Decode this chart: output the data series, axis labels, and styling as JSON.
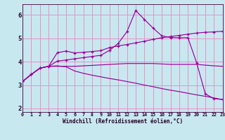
{
  "background_color": "#c8e8f0",
  "grid_color": "#e890c8",
  "line_color": "#990099",
  "xlabel": "Windchill (Refroidissement éolien,°C)",
  "xlim": [
    0,
    23
  ],
  "ylim": [
    1.85,
    6.45
  ],
  "xticks": [
    0,
    1,
    2,
    3,
    4,
    5,
    6,
    7,
    8,
    9,
    10,
    11,
    12,
    13,
    14,
    15,
    16,
    17,
    18,
    19,
    20,
    21,
    22,
    23
  ],
  "yticks": [
    2,
    3,
    4,
    5,
    6
  ],
  "lines": [
    {
      "x": [
        0,
        1,
        2,
        3,
        4,
        5,
        6,
        7,
        8,
        9,
        10,
        11,
        12,
        13,
        14,
        15,
        16,
        17,
        18,
        19,
        20,
        21,
        22,
        23
      ],
      "y": [
        3.15,
        3.45,
        3.72,
        3.8,
        4.38,
        4.45,
        4.37,
        4.4,
        4.43,
        4.47,
        4.6,
        4.67,
        4.73,
        4.8,
        4.87,
        4.95,
        5.02,
        5.07,
        5.12,
        5.17,
        5.22,
        5.25,
        5.27,
        5.3
      ],
      "marker": true
    },
    {
      "x": [
        0,
        1,
        2,
        3,
        4,
        5,
        6,
        7,
        8,
        9,
        10,
        11,
        12,
        13,
        14,
        15,
        16,
        17,
        18,
        19,
        20,
        21,
        22,
        23
      ],
      "y": [
        3.15,
        3.45,
        3.72,
        3.8,
        4.02,
        4.07,
        4.12,
        4.17,
        4.22,
        4.27,
        4.48,
        4.78,
        5.28,
        6.18,
        5.8,
        5.43,
        5.1,
        5.03,
        5.02,
        5.02,
        3.95,
        2.62,
        2.42,
        2.38
      ],
      "marker": true
    },
    {
      "x": [
        0,
        1,
        2,
        3,
        4,
        5,
        6,
        7,
        8,
        9,
        10,
        11,
        12,
        13,
        14,
        15,
        16,
        17,
        18,
        19,
        20,
        21,
        22,
        23
      ],
      "y": [
        3.15,
        3.45,
        3.72,
        3.8,
        3.82,
        3.78,
        3.6,
        3.5,
        3.42,
        3.35,
        3.28,
        3.22,
        3.15,
        3.08,
        3.0,
        2.93,
        2.85,
        2.78,
        2.72,
        2.65,
        2.58,
        2.52,
        2.45,
        2.38
      ],
      "marker": false
    },
    {
      "x": [
        0,
        1,
        2,
        3,
        4,
        5,
        6,
        7,
        8,
        9,
        10,
        11,
        12,
        13,
        14,
        15,
        16,
        17,
        18,
        19,
        20,
        21,
        22,
        23
      ],
      "y": [
        3.15,
        3.45,
        3.72,
        3.8,
        3.8,
        3.8,
        3.8,
        3.82,
        3.84,
        3.86,
        3.88,
        3.9,
        3.92,
        3.92,
        3.92,
        3.92,
        3.9,
        3.88,
        3.88,
        3.88,
        3.88,
        3.85,
        3.82,
        3.8
      ],
      "marker": false
    }
  ]
}
